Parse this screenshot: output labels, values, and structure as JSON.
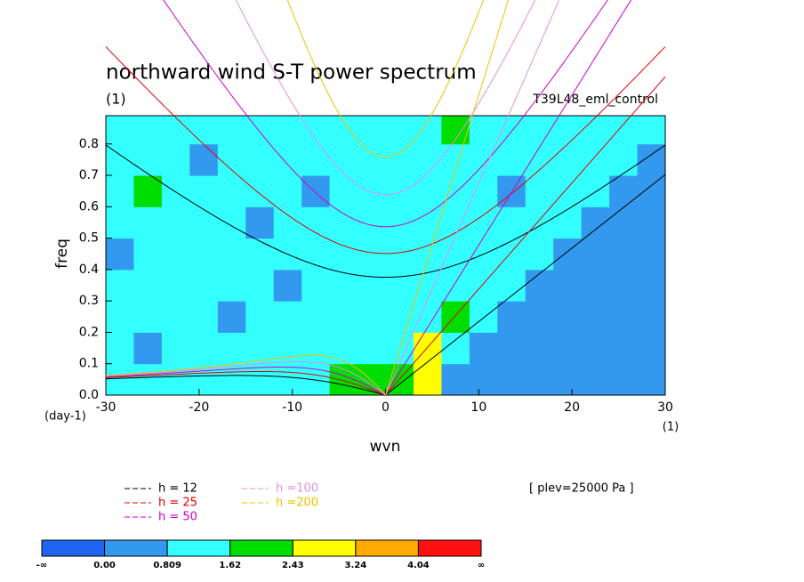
{
  "chart_data": {
    "type": "contour",
    "title": "northward wind S-T power spectrum",
    "unit_label": "(1)",
    "run_label": "T39L48_eml_control",
    "x_label": "wvn",
    "x_unit": "(1)",
    "y_label": "freq",
    "y_unit": "(day-1)",
    "level_label": "[ plev=25000 Pa ]",
    "xlim": [
      -30,
      30
    ],
    "xticks": [
      -30,
      -20,
      -10,
      0,
      10,
      20,
      30
    ],
    "ylim": [
      0,
      0.89
    ],
    "yticks": [
      {
        "value": 0,
        "label": "0.0"
      },
      0.1,
      0.2,
      0.3,
      0.4,
      0.5,
      0.6,
      0.7,
      0.8
    ],
    "x_centers": [
      -28.5,
      -25.5,
      -22.5,
      -19.5,
      -16.5,
      -13.5,
      -10.5,
      -7.5,
      -4.5,
      -1.5,
      1.5,
      4.5,
      7.5,
      10.5,
      13.5,
      16.5,
      19.5,
      22.5,
      25.5,
      28.5
    ],
    "y_centers": [
      0.05,
      0.15,
      0.25,
      0.35,
      0.45,
      0.55,
      0.65,
      0.75,
      0.85
    ],
    "z": [
      [
        1.2,
        1.1,
        1.2,
        1.0,
        1.2,
        1.3,
        1.2,
        1.4,
        1.7,
        1.9,
        2.0,
        2.6,
        0.5,
        0.5,
        0.5,
        0.5,
        0.5,
        0.5,
        0.5,
        0.5
      ],
      [
        1.1,
        0.7,
        1.2,
        1.1,
        1.2,
        1.0,
        1.2,
        1.1,
        1.3,
        1.5,
        1.4,
        2.9,
        1.3,
        0.5,
        0.5,
        0.5,
        0.5,
        0.5,
        0.5,
        0.5
      ],
      [
        1.1,
        1.2,
        1.0,
        1.2,
        0.7,
        1.1,
        1.2,
        1.0,
        1.2,
        1.5,
        1.2,
        1.3,
        1.7,
        1.2,
        0.5,
        0.5,
        0.5,
        0.5,
        0.5,
        0.5
      ],
      [
        1.2,
        1.1,
        1.2,
        1.1,
        1.2,
        1.0,
        0.7,
        1.2,
        1.1,
        1.5,
        1.2,
        1.3,
        1.4,
        1.2,
        1.0,
        0.5,
        0.5,
        0.5,
        0.5,
        0.5
      ],
      [
        0.7,
        1.1,
        1.2,
        1.2,
        1.1,
        1.2,
        1.1,
        1.2,
        1.0,
        1.5,
        1.1,
        1.2,
        1.3,
        1.1,
        1.2,
        1.1,
        0.6,
        0.6,
        0.6,
        0.6
      ],
      [
        1.1,
        1.2,
        1.0,
        1.2,
        1.1,
        0.7,
        1.2,
        1.1,
        1.2,
        1.4,
        1.2,
        1.1,
        1.2,
        1.0,
        1.2,
        1.1,
        1.2,
        0.7,
        0.7,
        0.7
      ],
      [
        1.2,
        1.7,
        1.1,
        1.2,
        1.0,
        1.2,
        1.1,
        0.7,
        1.2,
        1.5,
        1.1,
        1.2,
        1.1,
        1.2,
        0.7,
        1.1,
        1.2,
        1.1,
        0.8,
        0.8
      ],
      [
        1.1,
        1.2,
        1.2,
        0.7,
        1.2,
        1.1,
        1.2,
        1.1,
        1.0,
        1.4,
        1.2,
        1.1,
        1.2,
        1.1,
        1.2,
        1.0,
        1.2,
        1.1,
        1.2,
        0.8
      ],
      [
        1.2,
        1.1,
        1.0,
        1.2,
        1.1,
        1.2,
        1.0,
        1.2,
        1.1,
        1.6,
        1.1,
        1.2,
        1.7,
        1.2,
        1.1,
        1.2,
        1.0,
        1.2,
        1.1,
        1.2
      ]
    ],
    "colorbar": {
      "colors": [
        "#1e64f0",
        "#3399ee",
        "#33ffff",
        "#00dd00",
        "#ffff00",
        "#ffaa00",
        "#ff1111"
      ],
      "bounds": [
        {
          "label": "-∞"
        },
        {
          "value": 0,
          "label": "0.00"
        },
        {
          "value": 0.809,
          "label": "0.809"
        },
        {
          "value": 1.62,
          "label": "1.62"
        },
        {
          "value": 2.43,
          "label": "2.43"
        },
        {
          "value": 3.24,
          "label": "3.24"
        },
        {
          "value": 4.04,
          "label": "4.04"
        },
        {
          "label": "∞"
        }
      ]
    },
    "series": [
      {
        "name": "h = 12",
        "h": 12,
        "color": "#000000"
      },
      {
        "name": "h = 25",
        "h": 25,
        "color": "#e00000"
      },
      {
        "name": "h = 50",
        "h": 50,
        "color": "#cc00cc"
      },
      {
        "name": "h =100",
        "h": 100,
        "color": "#e090e0"
      },
      {
        "name": "h =200",
        "h": 200,
        "color": "#f0c000"
      }
    ]
  }
}
